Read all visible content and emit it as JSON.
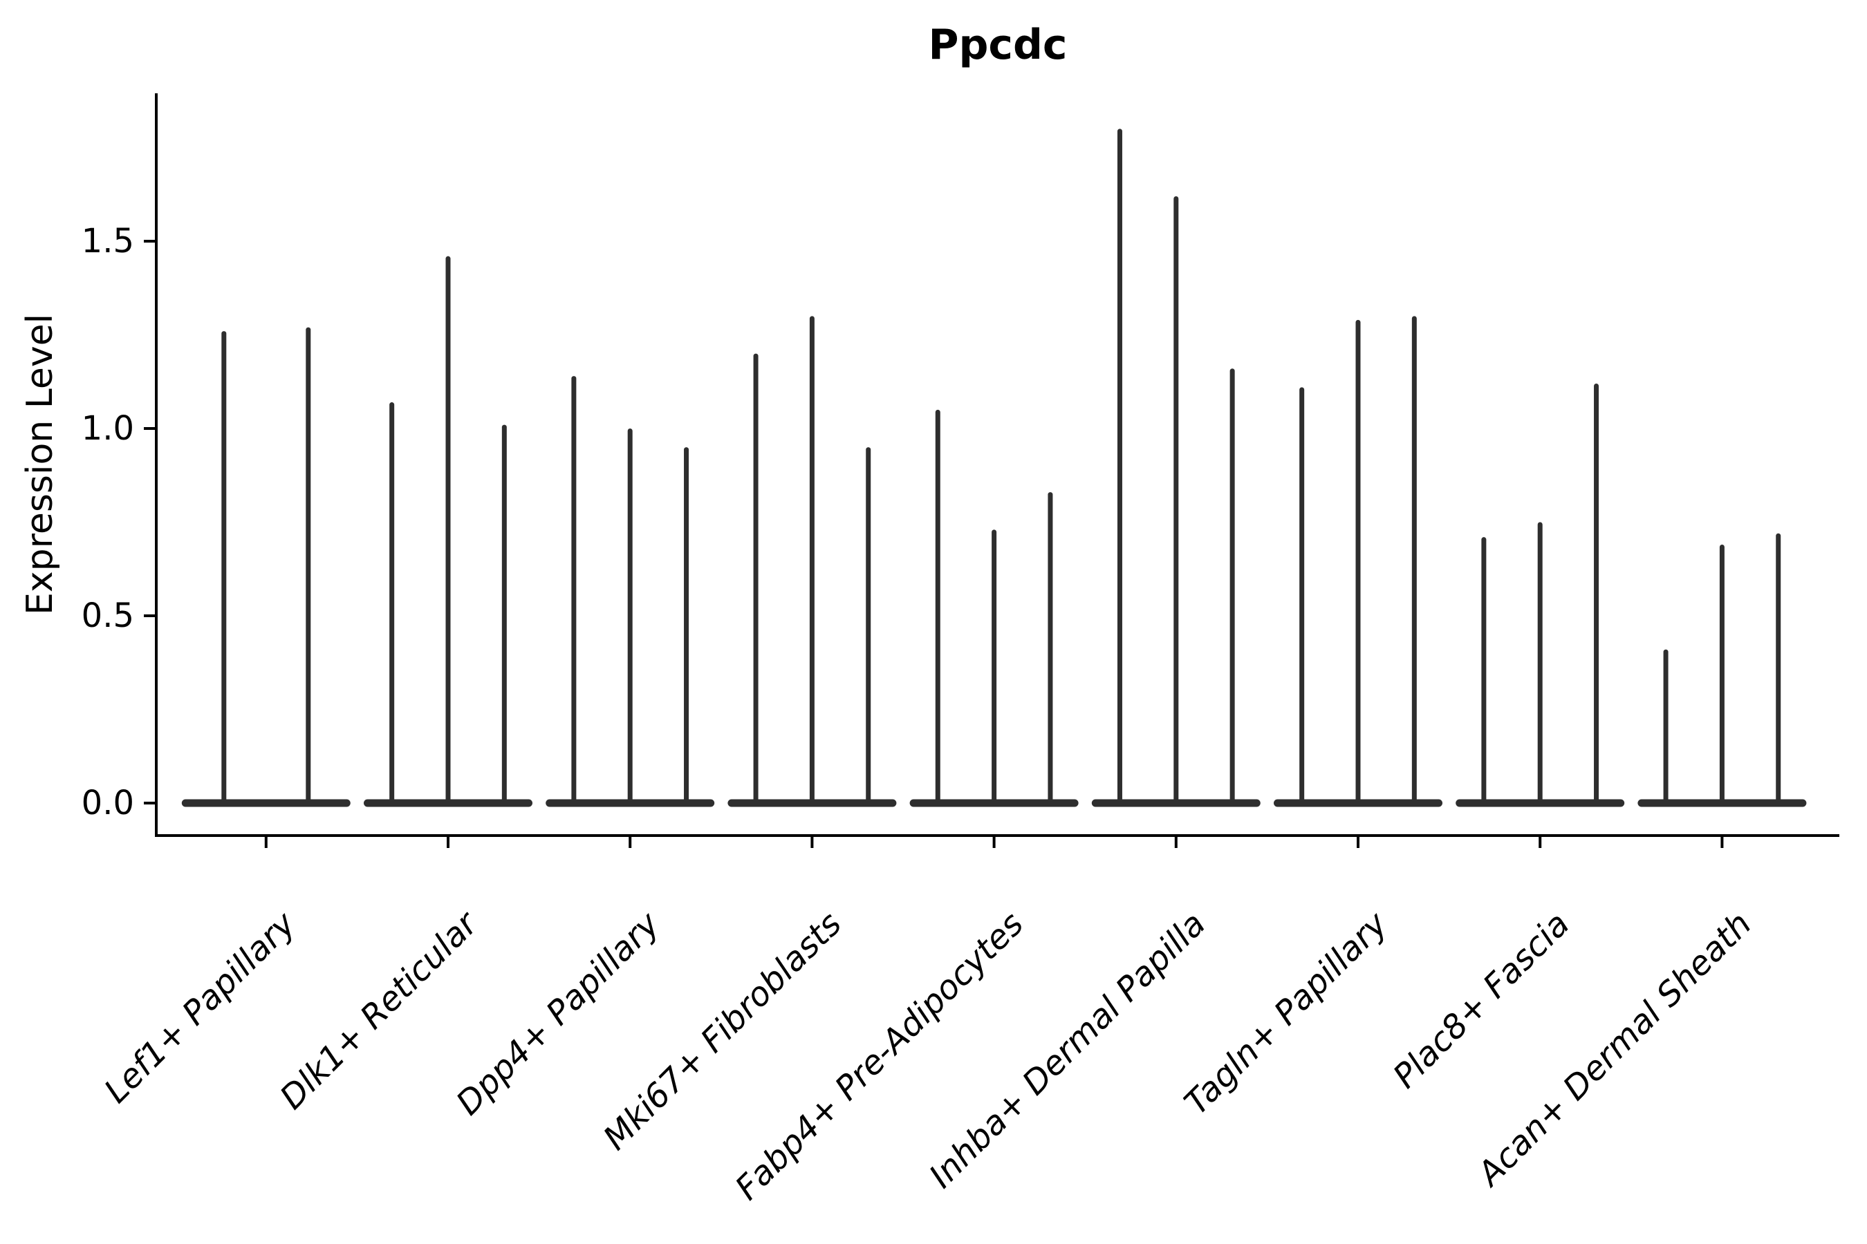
{
  "chart_data": {
    "type": "violin",
    "title": "Ppcdc",
    "xlabel": "",
    "ylabel": "Expression Level",
    "categories": [
      "Lef1+ Papillary",
      "Dlk1+ Reticular",
      "Dpp4+ Papillary",
      "Mki67+ Fibroblasts",
      "Fabp4+ Pre-Adipocytes",
      "Inhba+ Dermal Papilla",
      "Tagln+ Papillary",
      "Plac8+ Fascia",
      "Acan+ Dermal Sheath"
    ],
    "violins": [
      [
        1.26,
        1.27
      ],
      [
        1.07,
        1.46,
        1.01
      ],
      [
        1.14,
        1.0,
        0.95
      ],
      [
        1.2,
        1.3,
        0.95
      ],
      [
        1.05,
        0.73,
        0.83
      ],
      [
        1.8,
        1.62,
        1.16
      ],
      [
        1.11,
        1.29,
        1.3
      ],
      [
        0.71,
        0.75,
        1.12
      ],
      [
        0.41,
        0.69,
        0.72
      ]
    ],
    "yticks": [
      {
        "label": "0.0",
        "value": 0.0
      },
      {
        "label": "0.5",
        "value": 0.5
      },
      {
        "label": "1.0",
        "value": 1.0
      },
      {
        "label": "1.5",
        "value": 1.5
      }
    ],
    "ylim": [
      -0.09,
      1.9
    ],
    "grid": false,
    "legend": null,
    "colors": {
      "violin": "#2e2e2e",
      "axis": "#000000",
      "text": "#000000",
      "background": "#ffffff"
    }
  }
}
